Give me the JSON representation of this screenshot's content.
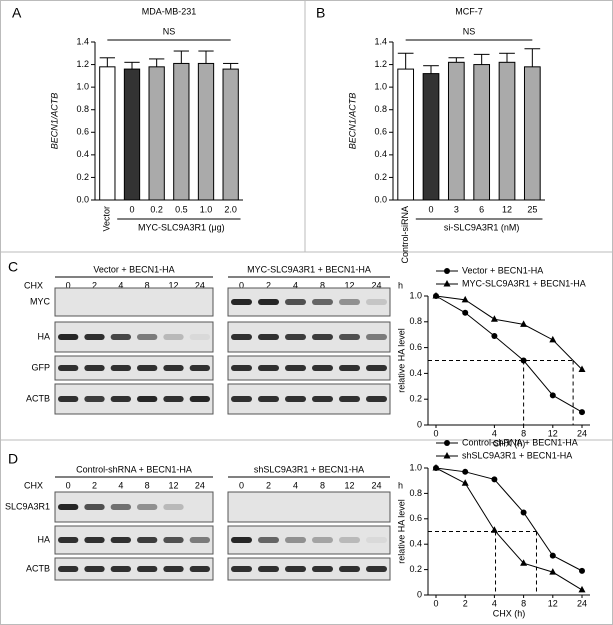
{
  "panels": [
    "A",
    "B",
    "C",
    "D"
  ],
  "chart_data": [
    {
      "type": "bar",
      "title": "MDA-MB-231",
      "y_label": "BECN1/ACTB",
      "categories": [
        "Vector",
        "0",
        "0.2",
        "0.5",
        "1.0",
        "2.0"
      ],
      "group_label": "MYC-SLC9A3R1 (μg)",
      "annotation": "NS",
      "values": [
        1.18,
        1.16,
        1.18,
        1.21,
        1.21,
        1.16
      ],
      "errors": [
        0.08,
        0.06,
        0.07,
        0.11,
        0.11,
        0.05
      ],
      "colors": [
        "#ffffff",
        "#333333",
        "#aaaaaa",
        "#aaaaaa",
        "#aaaaaa",
        "#aaaaaa"
      ],
      "ylim": [
        0,
        1.4
      ],
      "yticks": [
        {
          "value": 0,
          "label": "0.0"
        },
        0.2,
        0.4,
        0.6,
        0.8,
        {
          "value": 1,
          "label": "1.0"
        },
        1.2,
        1.4
      ]
    },
    {
      "type": "bar",
      "title": "MCF-7",
      "y_label": "BECN1/ACTB",
      "categories": [
        "Control-siRNA",
        "0",
        "3",
        "6",
        "12",
        "25"
      ],
      "group_label": "si-SLC9A3R1 (nM)",
      "annotation": "NS",
      "values": [
        1.16,
        1.12,
        1.22,
        1.2,
        1.22,
        1.18
      ],
      "errors": [
        0.14,
        0.07,
        0.04,
        0.09,
        0.08,
        0.16
      ],
      "colors": [
        "#ffffff",
        "#333333",
        "#aaaaaa",
        "#aaaaaa",
        "#aaaaaa",
        "#aaaaaa"
      ],
      "ylim": [
        0,
        1.4
      ],
      "yticks": [
        {
          "value": 0,
          "label": "0.0"
        },
        0.2,
        0.4,
        0.6,
        0.8,
        {
          "value": 1,
          "label": "1.0"
        },
        1.2,
        1.4
      ]
    },
    {
      "type": "line",
      "x_label": "CHX (h)",
      "y_label": "relative HA level",
      "categories": [
        "0",
        null,
        "4",
        "8",
        "12",
        "24"
      ],
      "legend": "top-right",
      "series": [
        {
          "name": "Vector + BECN1-HA",
          "marker": "circle",
          "color": "#000000",
          "values": [
            1.0,
            0.87,
            0.69,
            0.5,
            0.23,
            0.1
          ]
        },
        {
          "name": "MYC-SLC9A3R1 + BECN1-HA",
          "marker": "triangle",
          "color": "#000000",
          "values": [
            1.0,
            0.97,
            0.82,
            0.78,
            0.66,
            0.43
          ]
        }
      ],
      "reference_y": 0.5,
      "ylim": [
        0,
        1
      ],
      "yticks": [
        0,
        0.2,
        0.4,
        0.6,
        0.8,
        {
          "value": 1,
          "label": "1.0"
        }
      ]
    },
    {
      "type": "line",
      "x_label": "CHX (h)",
      "y_label": "relative HA level",
      "categories": [
        "0",
        "2",
        "4",
        "8",
        "12",
        "24"
      ],
      "legend": "top-right",
      "series": [
        {
          "name": "Control-shRNA + BECN1-HA",
          "marker": "circle",
          "color": "#000000",
          "values": [
            1.0,
            0.97,
            0.91,
            0.65,
            0.31,
            0.19
          ]
        },
        {
          "name": "shSLC9A3R1 + BECN1-HA",
          "marker": "triangle",
          "color": "#000000",
          "values": [
            1.0,
            0.88,
            0.51,
            0.25,
            0.18,
            0.04
          ]
        }
      ],
      "reference_y": 0.5,
      "ylim": [
        0,
        1
      ],
      "yticks": [
        0,
        0.2,
        0.4,
        0.6,
        0.8,
        {
          "value": 1,
          "label": "1.0"
        }
      ]
    }
  ],
  "blots": [
    {
      "treatment": "CHX",
      "unit": "h",
      "lanes": [
        "0",
        "2",
        "4",
        "8",
        "12",
        "24"
      ],
      "groups": [
        "Vector + BECN1-HA",
        "MYC-SLC9A3R1 + BECN1-HA"
      ],
      "rows": [
        "MYC",
        "HA",
        "GFP",
        "ACTB"
      ]
    },
    {
      "treatment": "CHX",
      "unit": "h",
      "lanes": [
        "0",
        "2",
        "4",
        "8",
        "12",
        "24"
      ],
      "groups": [
        "Control-shRNA + BECN1-HA",
        "shSLC9A3R1 + BECN1-HA"
      ],
      "rows": [
        "SLC9A3R1",
        "HA",
        "ACTB"
      ]
    }
  ]
}
